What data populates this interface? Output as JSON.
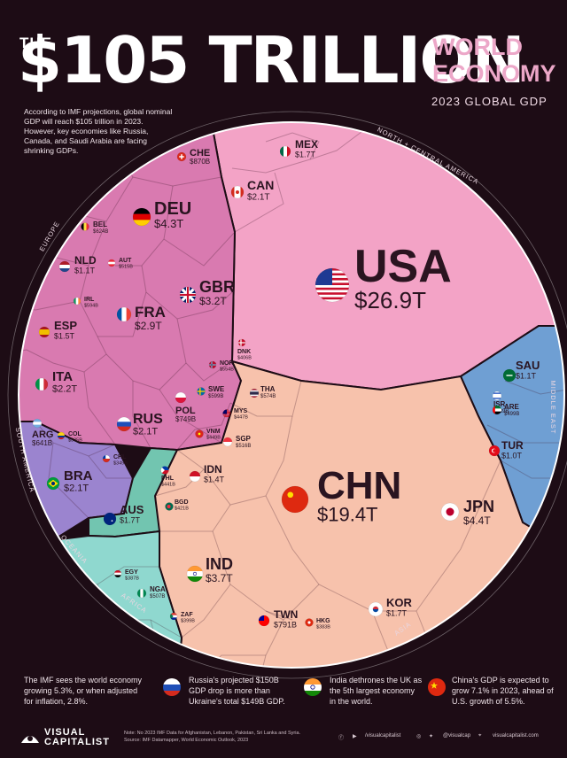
{
  "header": {
    "the": "THE",
    "amount": "$105 TRILLION",
    "right_title_line1": "WORLD",
    "right_title_line2": "ECONOMY",
    "subtitle": "2023 GLOBAL GDP",
    "intro": "According to IMF projections, global nominal GDP will reach $105 trillion in 2023. However, key economies like Russia, Canada, and Saudi Arabia are facing shrinking GDPs."
  },
  "colors": {
    "background": "#1d0c15",
    "north_america": "#f3a3c6",
    "europe": "#d97ab0",
    "asia": "#f7c2ac",
    "middle_east": "#6f9fd3",
    "south_america": "#9b84cf",
    "oceania": "#72c5b0",
    "africa": "#8fd8cf",
    "title_pink": "#eca7c8"
  },
  "chart_data": {
    "type": "voronoi treemap",
    "title": "The $105 Trillion World Economy",
    "subtitle": "2023 Global GDP",
    "unit": "USD",
    "regions": [
      {
        "name": "NORTH + CENTRAL AMERICA",
        "countries": [
          {
            "code": "USA",
            "gdp": "$26.9T",
            "value": 26.9
          },
          {
            "code": "CAN",
            "gdp": "$2.1T",
            "value": 2.1
          },
          {
            "code": "MEX",
            "gdp": "$1.7T",
            "value": 1.7
          }
        ]
      },
      {
        "name": "EUROPE",
        "countries": [
          {
            "code": "DEU",
            "gdp": "$4.3T",
            "value": 4.3
          },
          {
            "code": "GBR",
            "gdp": "$3.2T",
            "value": 3.2
          },
          {
            "code": "FRA",
            "gdp": "$2.9T",
            "value": 2.9
          },
          {
            "code": "ITA",
            "gdp": "$2.2T",
            "value": 2.2
          },
          {
            "code": "RUS",
            "gdp": "$2.1T",
            "value": 2.1
          },
          {
            "code": "ESP",
            "gdp": "$1.5T",
            "value": 1.5
          },
          {
            "code": "NLD",
            "gdp": "$1.1T",
            "value": 1.1
          },
          {
            "code": "CHE",
            "gdp": "$870B",
            "value": 0.87
          },
          {
            "code": "POL",
            "gdp": "$749B",
            "value": 0.749
          },
          {
            "code": "BEL",
            "gdp": "$624B",
            "value": 0.624
          },
          {
            "code": "SWE",
            "gdp": "$599B",
            "value": 0.599
          },
          {
            "code": "IRL",
            "gdp": "$594B",
            "value": 0.594
          },
          {
            "code": "AUT",
            "gdp": "$515B",
            "value": 0.515
          },
          {
            "code": "NOR",
            "gdp": "$554B",
            "value": 0.554
          },
          {
            "code": "DNK",
            "gdp": "$406B",
            "value": 0.406
          }
        ]
      },
      {
        "name": "ASIA",
        "countries": [
          {
            "code": "CHN",
            "gdp": "$19.4T",
            "value": 19.4
          },
          {
            "code": "JPN",
            "gdp": "$4.4T",
            "value": 4.4
          },
          {
            "code": "IND",
            "gdp": "$3.7T",
            "value": 3.7
          },
          {
            "code": "KOR",
            "gdp": "$1.7T",
            "value": 1.7
          },
          {
            "code": "IDN",
            "gdp": "$1.4T",
            "value": 1.4
          },
          {
            "code": "TWN",
            "gdp": "$791B",
            "value": 0.791
          },
          {
            "code": "THA",
            "gdp": "$574B",
            "value": 0.574
          },
          {
            "code": "SGP",
            "gdp": "$516B",
            "value": 0.516
          },
          {
            "code": "MYS",
            "gdp": "$447B",
            "value": 0.447
          },
          {
            "code": "PHL",
            "gdp": "$441B",
            "value": 0.441
          },
          {
            "code": "VNM",
            "gdp": "$449B",
            "value": 0.449
          },
          {
            "code": "BGD",
            "gdp": "$421B",
            "value": 0.421
          },
          {
            "code": "HKG",
            "gdp": "$383B",
            "value": 0.383
          }
        ]
      },
      {
        "name": "MIDDLE EAST",
        "countries": [
          {
            "code": "SAU",
            "gdp": "$1.1T",
            "value": 1.1
          },
          {
            "code": "TUR",
            "gdp": "$1.0T",
            "value": 1.0
          },
          {
            "code": "ISR",
            "gdp": "$539B",
            "value": 0.539
          },
          {
            "code": "ARE",
            "gdp": "$499B",
            "value": 0.499
          }
        ]
      },
      {
        "name": "SOUTH AMERICA",
        "countries": [
          {
            "code": "BRA",
            "gdp": "$2.1T",
            "value": 2.1
          },
          {
            "code": "ARG",
            "gdp": "$641B",
            "value": 0.641
          },
          {
            "code": "CHL",
            "gdp": "$349B",
            "value": 0.349
          },
          {
            "code": "COL",
            "gdp": "$335B",
            "value": 0.335
          }
        ]
      },
      {
        "name": "OCEANIA",
        "countries": [
          {
            "code": "AUS",
            "gdp": "$1.7T",
            "value": 1.7
          }
        ]
      },
      {
        "name": "AFRICA",
        "countries": [
          {
            "code": "NGA",
            "gdp": "$507B",
            "value": 0.507
          },
          {
            "code": "EGY",
            "gdp": "$387B",
            "value": 0.387
          },
          {
            "code": "ZAF",
            "gdp": "$399B",
            "value": 0.399
          }
        ]
      }
    ]
  },
  "footer": {
    "notes": [
      {
        "text": "The IMF sees the world economy growing 5.3%, or when adjusted for inflation, 2.8%.",
        "icon": "none"
      },
      {
        "text": "Russia's projected $150B GDP drop is more than Ukraine's total $149B GDP.",
        "icon": "russia-flag"
      },
      {
        "text": "India dethrones the UK as the 5th largest economy in the world.",
        "icon": "india-flag"
      },
      {
        "text": "China's GDP is expected to grow 7.1% in 2023, ahead of U.S. growth of 5.5%.",
        "icon": "china-flag"
      }
    ],
    "brand_line1": "VISUAL",
    "brand_line2": "CAPITALIST",
    "source_line1": "Note: No 2023 IMF Data for Afghanistan, Lebanon, Pakistan, Sri Lanka and Syria.",
    "source_line2": "Source: IMF Datamapper, World Economic Outlook, 2023",
    "social_handle_1": "/visualcapitalist",
    "social_handle_2": "@visualcap",
    "social_handle_3": "visualcapitalist.com"
  }
}
